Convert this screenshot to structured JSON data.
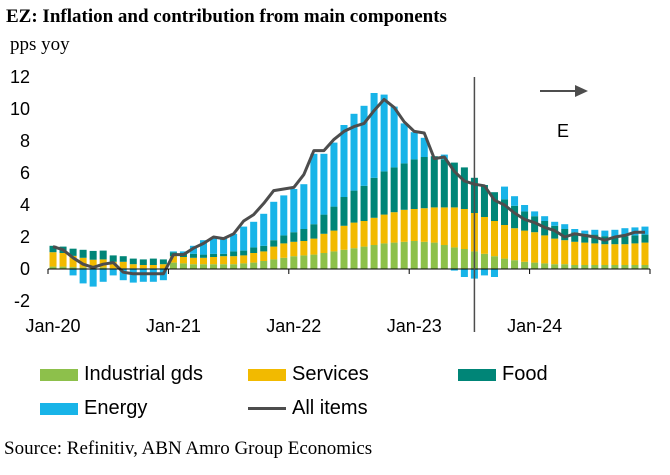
{
  "title": "EZ: Inflation and contribution from main components",
  "source": "Source: Refinitiv, ABN Amro Group Economics",
  "chart_data": {
    "type": "bar",
    "stacked": true,
    "ylabel": "pps yoy",
    "ylim": [
      -2,
      12
    ],
    "yticks": [
      -2,
      0,
      2,
      4,
      6,
      8,
      10,
      12
    ],
    "xtick_labels": [
      "Jan-20",
      "Jan-21",
      "Jan-22",
      "Jan-23",
      "Jan-24"
    ],
    "forecast_marker_label": "E",
    "forecast_start": "Jul-23",
    "categories": [
      "Jan-20",
      "Feb-20",
      "Mar-20",
      "Apr-20",
      "May-20",
      "Jun-20",
      "Jul-20",
      "Aug-20",
      "Sep-20",
      "Oct-20",
      "Nov-20",
      "Dec-20",
      "Jan-21",
      "Feb-21",
      "Mar-21",
      "Apr-21",
      "May-21",
      "Jun-21",
      "Jul-21",
      "Aug-21",
      "Sep-21",
      "Oct-21",
      "Nov-21",
      "Dec-21",
      "Jan-22",
      "Feb-22",
      "Mar-22",
      "Apr-22",
      "May-22",
      "Jun-22",
      "Jul-22",
      "Aug-22",
      "Sep-22",
      "Oct-22",
      "Nov-22",
      "Dec-22",
      "Jan-23",
      "Feb-23",
      "Mar-23",
      "Apr-23",
      "May-23",
      "Jun-23",
      "Jul-23",
      "Aug-23",
      "Sep-23",
      "Oct-23",
      "Nov-23",
      "Dec-23",
      "Jan-24",
      "Feb-24",
      "Mar-24",
      "Apr-24",
      "May-24",
      "Jun-24",
      "Jul-24",
      "Aug-24",
      "Sep-24",
      "Oct-24",
      "Nov-24",
      "Dec-24"
    ],
    "series": [
      {
        "name": "Industrial gds",
        "color": "#8DC04B",
        "kind": "bar",
        "values": [
          0.15,
          0.15,
          0.12,
          0.1,
          0.08,
          0.1,
          0.05,
          0.05,
          0.05,
          0.05,
          0.05,
          0.05,
          0.4,
          0.35,
          0.3,
          0.3,
          0.3,
          0.3,
          0.3,
          0.35,
          0.4,
          0.5,
          0.6,
          0.7,
          0.8,
          0.85,
          0.9,
          1.0,
          1.1,
          1.2,
          1.3,
          1.4,
          1.5,
          1.6,
          1.65,
          1.7,
          1.75,
          1.7,
          1.65,
          1.5,
          1.35,
          1.25,
          1.1,
          0.95,
          0.8,
          0.65,
          0.55,
          0.45,
          0.4,
          0.35,
          0.3,
          0.3,
          0.25,
          0.25,
          0.25,
          0.25,
          0.25,
          0.25,
          0.25,
          0.25
        ]
      },
      {
        "name": "Services",
        "color": "#F2BA00",
        "kind": "bar",
        "values": [
          0.9,
          0.85,
          0.7,
          0.6,
          0.5,
          0.5,
          0.4,
          0.4,
          0.25,
          0.2,
          0.2,
          0.25,
          0.4,
          0.4,
          0.4,
          0.4,
          0.45,
          0.5,
          0.5,
          0.5,
          0.6,
          0.6,
          0.8,
          0.9,
          0.9,
          0.9,
          1.0,
          1.2,
          1.3,
          1.5,
          1.6,
          1.6,
          1.7,
          1.8,
          1.9,
          2.0,
          2.0,
          2.1,
          2.2,
          2.35,
          2.5,
          2.5,
          2.4,
          2.3,
          2.2,
          2.1,
          2.0,
          1.95,
          1.9,
          1.75,
          1.6,
          1.5,
          1.45,
          1.4,
          1.35,
          1.3,
          1.3,
          1.3,
          1.35,
          1.4
        ]
      },
      {
        "name": "Food",
        "color": "#008577",
        "kind": "bar",
        "values": [
          0.4,
          0.4,
          0.45,
          0.5,
          0.55,
          0.55,
          0.4,
          0.35,
          0.35,
          0.35,
          0.4,
          0.3,
          0.25,
          0.25,
          0.25,
          0.2,
          0.2,
          0.15,
          0.3,
          0.3,
          0.35,
          0.35,
          0.4,
          0.5,
          0.6,
          0.75,
          0.9,
          1.2,
          1.5,
          1.8,
          2.0,
          2.2,
          2.5,
          2.7,
          2.8,
          2.9,
          3.1,
          3.2,
          3.2,
          3.0,
          2.8,
          2.6,
          2.2,
          2.0,
          1.8,
          1.6,
          1.4,
          1.2,
          1.0,
          0.9,
          0.8,
          0.7,
          0.6,
          0.55,
          0.55,
          0.5,
          0.5,
          0.5,
          0.5,
          0.5
        ]
      },
      {
        "name": "Energy",
        "color": "#18B4E8",
        "kind": "bar",
        "values": [
          0.0,
          0.0,
          -0.4,
          -0.9,
          -1.1,
          -0.8,
          -0.4,
          -0.7,
          -0.85,
          -0.8,
          -0.8,
          -0.7,
          0.05,
          0.1,
          0.5,
          0.9,
          1.0,
          1.0,
          1.1,
          1.5,
          1.6,
          2.0,
          2.4,
          2.5,
          2.7,
          2.8,
          4.4,
          3.8,
          4.0,
          4.5,
          4.8,
          5.0,
          5.3,
          4.8,
          3.8,
          2.5,
          1.7,
          1.2,
          0.0,
          0.3,
          -0.1,
          -0.5,
          -0.6,
          -0.4,
          -0.5,
          0.8,
          0.6,
          0.4,
          0.3,
          0.3,
          0.25,
          0.3,
          0.2,
          0.2,
          0.3,
          0.35,
          0.4,
          0.5,
          0.5,
          0.5
        ]
      },
      {
        "name": "All items",
        "color": "#4D4D4D",
        "kind": "line",
        "values": [
          1.4,
          1.2,
          0.7,
          0.3,
          0.1,
          0.3,
          0.4,
          -0.2,
          -0.3,
          -0.3,
          -0.3,
          -0.3,
          0.9,
          0.9,
          1.3,
          1.6,
          2.0,
          1.9,
          2.2,
          3.0,
          3.4,
          4.1,
          4.9,
          5.0,
          5.1,
          5.9,
          7.4,
          7.4,
          8.1,
          8.6,
          8.9,
          9.1,
          9.9,
          10.6,
          10.1,
          9.2,
          8.6,
          8.5,
          6.9,
          7.0,
          6.1,
          5.5,
          5.3,
          5.2,
          4.3,
          4.0,
          3.5,
          3.1,
          2.9,
          2.6,
          2.4,
          2.0,
          2.2,
          2.1,
          2.0,
          1.8,
          2.0,
          2.1,
          2.3,
          2.3
        ]
      }
    ]
  }
}
